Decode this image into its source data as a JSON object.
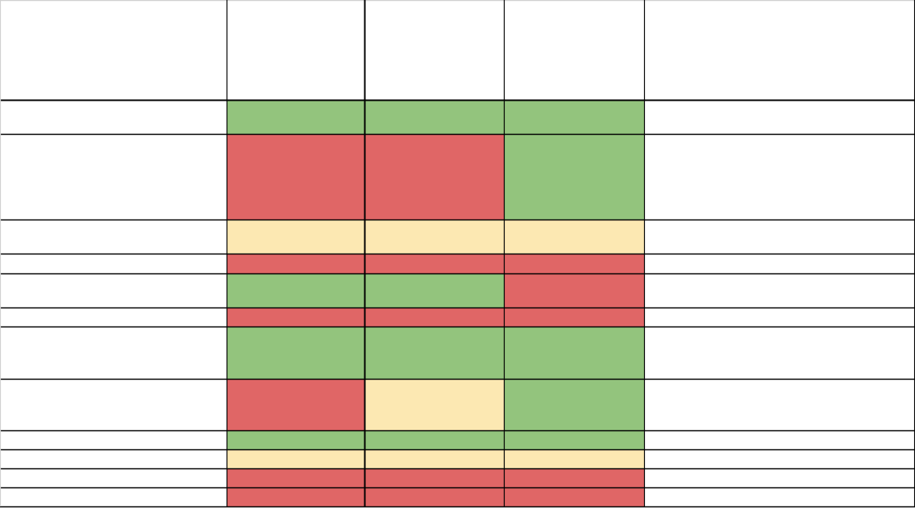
{
  "table": {
    "rows": [
      [
        "#93c47d",
        "#93c47d",
        "#93c47d"
      ],
      [
        "#e06666",
        "#e06666",
        "#93c47d"
      ],
      [
        "#fce8b2",
        "#fce8b2",
        "#fce8b2"
      ],
      [
        "#e06666",
        "#e06666",
        "#e06666"
      ],
      [
        "#93c47d",
        "#93c47d",
        "#e06666"
      ],
      [
        "#e06666",
        "#e06666",
        "#e06666"
      ],
      [
        "#93c47d",
        "#93c47d",
        "#93c47d"
      ],
      [
        "#e06666",
        "#fce8b2",
        "#93c47d"
      ],
      [
        "#93c47d",
        "#93c47d",
        "#93c47d"
      ],
      [
        "#fce8b2",
        "#fce8b2",
        "#fce8b2"
      ],
      [
        "#e06666",
        "#e06666",
        "#e06666"
      ],
      [
        "#e06666",
        "#e06666",
        "#e06666"
      ]
    ]
  }
}
